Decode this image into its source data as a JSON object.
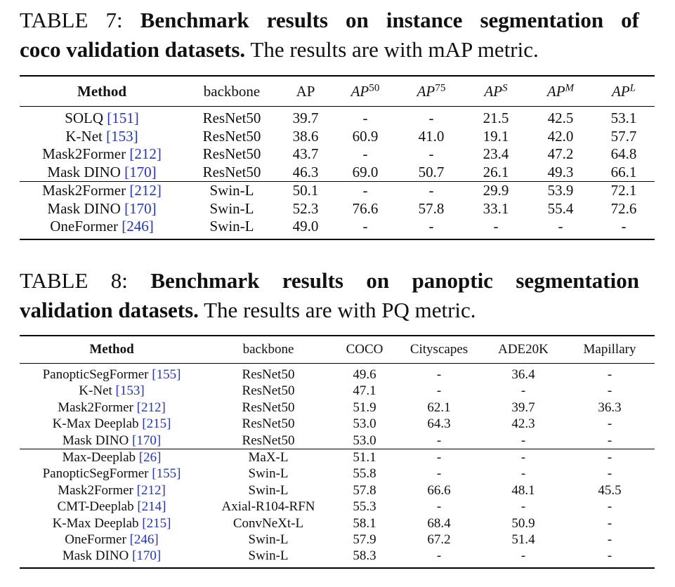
{
  "table7": {
    "caption_label": "TABLE 7:",
    "caption_bold_line1": "Benchmark results on instance segmentation of",
    "caption_bold_line2": "coco validation datasets.",
    "caption_rest": "The results are with mAP metric.",
    "headers": {
      "method": "Method",
      "backbone": "backbone",
      "ap": "AP",
      "ap_base": "AP",
      "ap50_sup": "50",
      "ap75_sup": "75",
      "aps_sup": "S",
      "apm_sup": "M",
      "apl_sup": "L"
    },
    "rows": [
      {
        "method": "SOLQ",
        "cite": "[151]",
        "backbone": "ResNet50",
        "ap": "39.7",
        "ap50": "-",
        "ap75": "-",
        "aps": "21.5",
        "apm": "42.5",
        "apl": "53.1"
      },
      {
        "method": "K-Net",
        "cite": "[153]",
        "backbone": "ResNet50",
        "ap": "38.6",
        "ap50": "60.9",
        "ap75": "41.0",
        "aps": "19.1",
        "apm": "42.0",
        "apl": "57.7"
      },
      {
        "method": "Mask2Former",
        "cite": "[212]",
        "backbone": "ResNet50",
        "ap": "43.7",
        "ap50": "-",
        "ap75": "-",
        "aps": "23.4",
        "apm": "47.2",
        "apl": "64.8"
      },
      {
        "method": "Mask DINO",
        "cite": "[170]",
        "backbone": "ResNet50",
        "ap": "46.3",
        "ap50": "69.0",
        "ap75": "50.7",
        "aps": "26.1",
        "apm": "49.3",
        "apl": "66.1"
      },
      {
        "method": "Mask2Former",
        "cite": "[212]",
        "backbone": "Swin-L",
        "ap": "50.1",
        "ap50": "-",
        "ap75": "-",
        "aps": "29.9",
        "apm": "53.9",
        "apl": "72.1"
      },
      {
        "method": "Mask DINO",
        "cite": "[170]",
        "backbone": "Swin-L",
        "ap": "52.3",
        "ap50": "76.6",
        "ap75": "57.8",
        "aps": "33.1",
        "apm": "55.4",
        "apl": "72.6"
      },
      {
        "method": "OneFormer",
        "cite": "[246]",
        "backbone": "Swin-L",
        "ap": "49.0",
        "ap50": "-",
        "ap75": "-",
        "aps": "-",
        "apm": "-",
        "apl": "-"
      }
    ]
  },
  "table8": {
    "caption_label": "TABLE 8:",
    "caption_bold_line1": "Benchmark results on panoptic segmentation",
    "caption_bold_line2": "validation datasets.",
    "caption_rest": "The results are with PQ metric.",
    "headers": {
      "method": "Method",
      "backbone": "backbone",
      "coco": "COCO",
      "cityscapes": "Cityscapes",
      "ade20k": "ADE20K",
      "mapillary": "Mapillary"
    },
    "rows": [
      {
        "method": "PanopticSegFormer",
        "cite": "[155]",
        "backbone": "ResNet50",
        "coco": "49.6",
        "cityscapes": "-",
        "ade20k": "36.4",
        "mapillary": "-"
      },
      {
        "method": "K-Net",
        "cite": "[153]",
        "backbone": "ResNet50",
        "coco": "47.1",
        "cityscapes": "-",
        "ade20k": "-",
        "mapillary": "-"
      },
      {
        "method": "Mask2Former",
        "cite": "[212]",
        "backbone": "ResNet50",
        "coco": "51.9",
        "cityscapes": "62.1",
        "ade20k": "39.7",
        "mapillary": "36.3"
      },
      {
        "method": "K-Max Deeplab",
        "cite": "[215]",
        "backbone": "ResNet50",
        "coco": "53.0",
        "cityscapes": "64.3",
        "ade20k": "42.3",
        "mapillary": "-"
      },
      {
        "method": "Mask DINO",
        "cite": "[170]",
        "backbone": "ResNet50",
        "coco": "53.0",
        "cityscapes": "-",
        "ade20k": "-",
        "mapillary": "-"
      },
      {
        "method": "Max-Deeplab",
        "cite": "[26]",
        "backbone": "MaX-L",
        "coco": "51.1",
        "cityscapes": "-",
        "ade20k": "-",
        "mapillary": "-"
      },
      {
        "method": "PanopticSegFormer",
        "cite": "[155]",
        "backbone": "Swin-L",
        "coco": "55.8",
        "cityscapes": "-",
        "ade20k": "-",
        "mapillary": "-"
      },
      {
        "method": "Mask2Former",
        "cite": "[212]",
        "backbone": "Swin-L",
        "coco": "57.8",
        "cityscapes": "66.6",
        "ade20k": "48.1",
        "mapillary": "45.5"
      },
      {
        "method": "CMT-Deeplab",
        "cite": "[214]",
        "backbone": "Axial-R104-RFN",
        "coco": "55.3",
        "cityscapes": "-",
        "ade20k": "-",
        "mapillary": "-"
      },
      {
        "method": "K-Max Deeplab",
        "cite": "[215]",
        "backbone": "ConvNeXt-L",
        "coco": "58.1",
        "cityscapes": "68.4",
        "ade20k": "50.9",
        "mapillary": "-"
      },
      {
        "method": "OneFormer",
        "cite": "[246]",
        "backbone": "Swin-L",
        "coco": "57.9",
        "cityscapes": "67.2",
        "ade20k": "51.4",
        "mapillary": "-"
      },
      {
        "method": "Mask DINO",
        "cite": "[170]",
        "backbone": "Swin-L",
        "coco": "58.3",
        "cityscapes": "-",
        "ade20k": "-",
        "mapillary": "-"
      }
    ]
  }
}
